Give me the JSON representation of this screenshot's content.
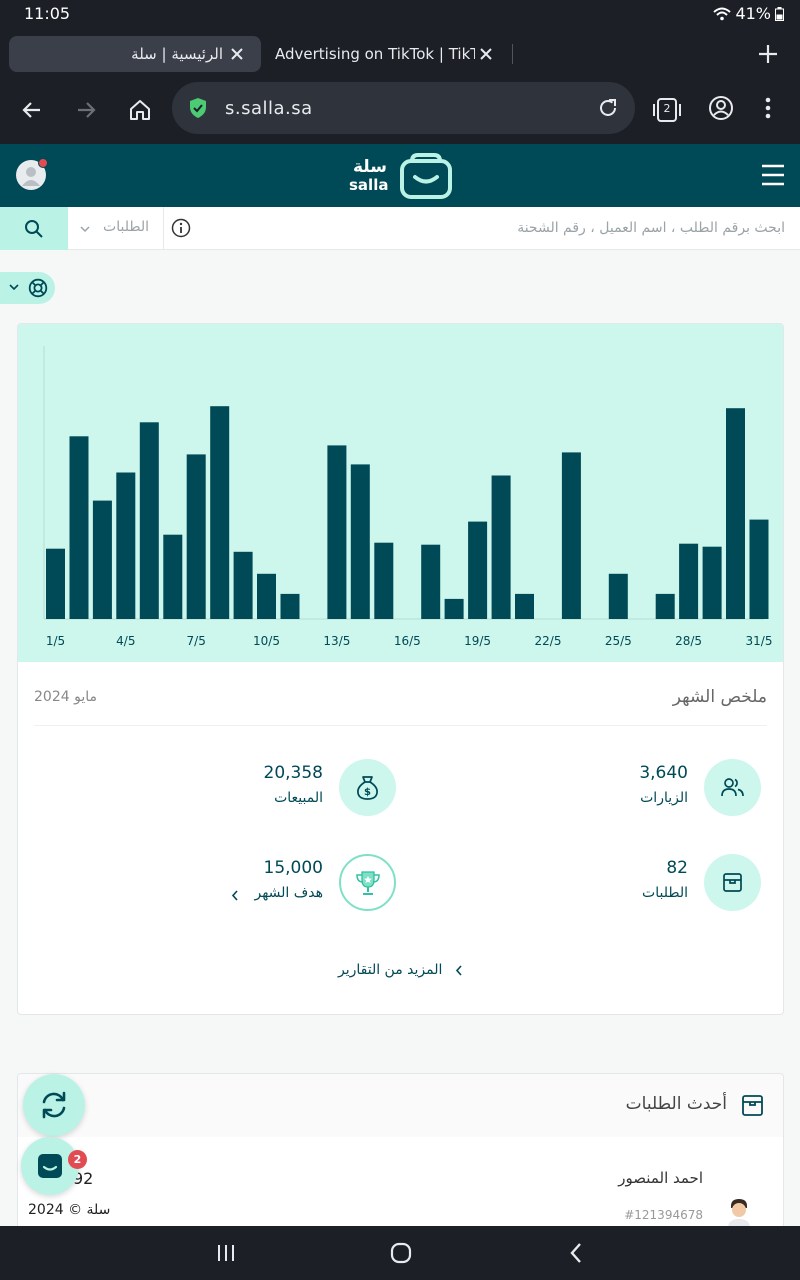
{
  "status_bar": {
    "time": "11:05",
    "battery": "41%"
  },
  "browser": {
    "tabs": [
      {
        "title": "الرئيسية | سلة",
        "active": true
      },
      {
        "title": "Advertising on TikTok | TikTok",
        "active": false
      }
    ],
    "url": "s.salla.sa",
    "tab_count": "2"
  },
  "app": {
    "brand_ar": "سلة",
    "brand_en": "salla",
    "colors": {
      "primary": "#004956",
      "accent": "#baf3e6",
      "chart_bg": "#cdf6ec",
      "bar": "#004956",
      "badge": "#e24b52"
    }
  },
  "search": {
    "placeholder": "ابحث برقم الطلب ، اسم العميل ، رقم الشحنة",
    "scope": "الطلبات"
  },
  "chart_data": {
    "type": "bar",
    "title": "",
    "xlabel": "",
    "ylabel": "",
    "categories": [
      "1/5",
      "2/5",
      "3/5",
      "4/5",
      "5/5",
      "6/5",
      "7/5",
      "8/5",
      "9/5",
      "10/5",
      "11/5",
      "12/5",
      "13/5",
      "14/5",
      "15/5",
      "16/5",
      "17/5",
      "18/5",
      "19/5",
      "20/5",
      "21/5",
      "22/5",
      "23/5",
      "24/5",
      "25/5",
      "26/5",
      "27/5",
      "28/5",
      "29/5",
      "30/5",
      "31/5"
    ],
    "tick_labels": [
      "1/5",
      "4/5",
      "7/5",
      "10/5",
      "13/5",
      "16/5",
      "19/5",
      "22/5",
      "25/5",
      "28/5",
      "31/5"
    ],
    "values": [
      70,
      182,
      118,
      146,
      196,
      84,
      164,
      212,
      67,
      45,
      25,
      0,
      173,
      154,
      76,
      0,
      74,
      20,
      97,
      143,
      25,
      0,
      166,
      0,
      45,
      0,
      25,
      75,
      72,
      210,
      99
    ],
    "ylim": [
      0,
      272
    ],
    "grid": false
  },
  "summary": {
    "title": "ملخص الشهر",
    "date": "مايو 2024",
    "stats": [
      {
        "value": "3,640",
        "label": "الزيارات",
        "icon": "users-icon"
      },
      {
        "value": "20,358",
        "label": "المبيعات",
        "icon": "money-bag-icon"
      },
      {
        "value": "82",
        "label": "الطلبات",
        "icon": "box-icon"
      },
      {
        "value": "15,000",
        "label": "هدف الشهر",
        "icon": "trophy-icon"
      }
    ],
    "more_link": "المزيد من التقارير"
  },
  "orders": {
    "title": "أحدث الطلبات",
    "first": {
      "customer": "احمد المنصور",
      "order_no": "#121394678",
      "amount": "92"
    }
  },
  "footer": {
    "copyright": "سلة © 2024"
  },
  "chat": {
    "badge": "2"
  }
}
